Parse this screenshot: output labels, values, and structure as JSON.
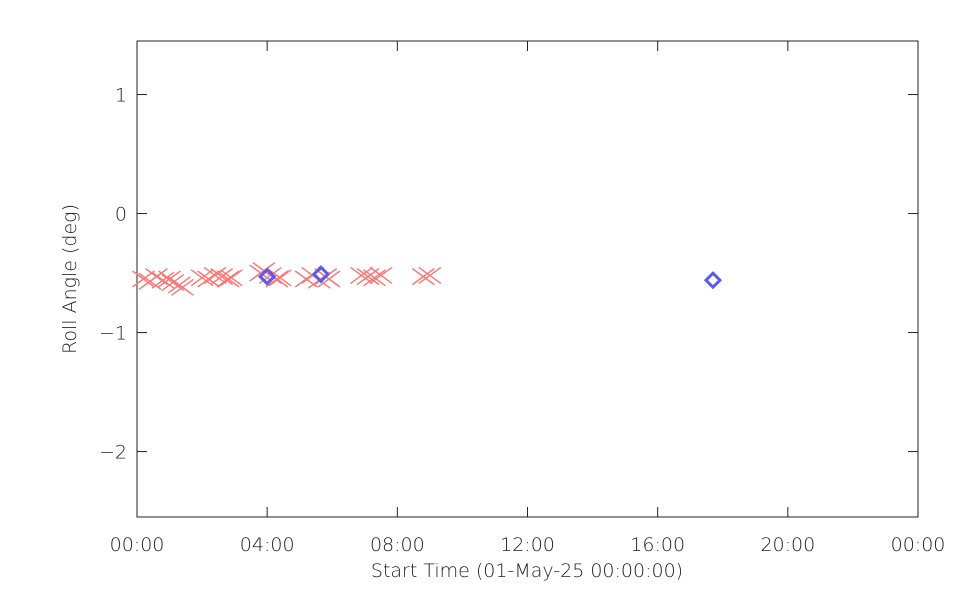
{
  "chart_data": {
    "type": "scatter",
    "x_label": "Start Time (01-May-25 00:00:00)",
    "y_label": "Roll Angle (deg)",
    "xlim": [
      0,
      24
    ],
    "xticks": [
      {
        "value": 0,
        "label": "00:00"
      },
      {
        "value": 4,
        "label": "04:00"
      },
      {
        "value": 8,
        "label": "08:00"
      },
      {
        "value": 12,
        "label": "12:00"
      },
      {
        "value": 16,
        "label": "16:00"
      },
      {
        "value": 20,
        "label": "20:00"
      },
      {
        "value": 24,
        "label": "00:00"
      }
    ],
    "ylim": [
      -2.55,
      1.45
    ],
    "yticks": [
      {
        "value": -2,
        "label": "−2"
      },
      {
        "value": -1,
        "label": "−1"
      },
      0,
      1
    ],
    "series": [
      {
        "marker": "x",
        "color": "#f77a7a",
        "x": [
          0.2,
          0.4,
          0.6,
          0.8,
          1.0,
          1.1,
          1.3,
          1.4,
          2.0,
          2.2,
          2.4,
          2.6,
          2.8,
          2.9,
          3.8,
          3.9,
          4.1,
          4.3,
          4.4,
          5.2,
          5.4,
          5.6,
          5.8,
          5.9,
          6.9,
          7.1,
          7.3,
          7.5,
          8.8,
          9.0
        ],
        "values": [
          -0.55,
          -0.57,
          -0.53,
          -0.56,
          -0.55,
          -0.58,
          -0.6,
          -0.62,
          -0.54,
          -0.55,
          -0.52,
          -0.53,
          -0.55,
          -0.54,
          -0.5,
          -0.48,
          -0.52,
          -0.55,
          -0.54,
          -0.55,
          -0.52,
          -0.56,
          -0.53,
          -0.55,
          -0.52,
          -0.53,
          -0.54,
          -0.52,
          -0.53,
          -0.52
        ]
      },
      {
        "marker": "diamond",
        "color": "#5a5aee",
        "x": [
          4.0,
          5.65,
          17.7
        ],
        "values": [
          -0.53,
          -0.51,
          -0.56
        ]
      }
    ]
  }
}
